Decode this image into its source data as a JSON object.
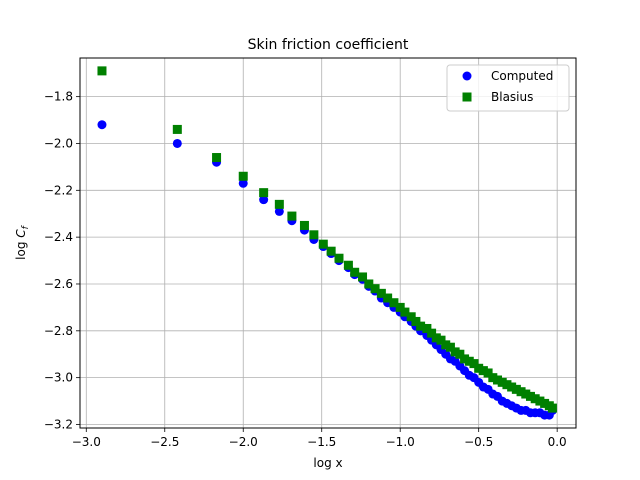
{
  "chart_data": {
    "type": "scatter",
    "title": "Skin friction coefficient",
    "xlabel": "log x",
    "ylabel_main": "log ",
    "ylabel_sym": "C",
    "ylabel_sub": "f",
    "xlim": [
      -3.04,
      0.12
    ],
    "ylim": [
      -3.215,
      -1.635
    ],
    "xticks": [
      -3.0,
      -2.5,
      -2.0,
      -1.5,
      -1.0,
      -0.5,
      0.0
    ],
    "xtick_labels": [
      "−3.0",
      "−2.5",
      "−2.0",
      "−1.5",
      "−1.0",
      "−0.5",
      "0.0"
    ],
    "yticks": [
      -3.2,
      -3.0,
      -2.8,
      -2.6,
      -2.4,
      -2.2,
      -2.0,
      -1.8
    ],
    "ytick_labels": [
      "−3.2",
      "−3.0",
      "−2.8",
      "−2.6",
      "−2.4",
      "−2.2",
      "−2.0",
      "−1.8"
    ],
    "grid": true,
    "legend_position": "top-right",
    "series": [
      {
        "name": "Computed",
        "marker": "circle",
        "color": "#0000ff",
        "x": [
          -2.9,
          -2.42,
          -2.17,
          -2.0,
          -1.87,
          -1.77,
          -1.69,
          -1.61,
          -1.55,
          -1.49,
          -1.44,
          -1.39,
          -1.33,
          -1.29,
          -1.24,
          -1.2,
          -1.16,
          -1.12,
          -1.08,
          -1.04,
          -1.0,
          -0.97,
          -0.93,
          -0.9,
          -0.87,
          -0.83,
          -0.8,
          -0.77,
          -0.74,
          -0.71,
          -0.68,
          -0.65,
          -0.62,
          -0.59,
          -0.56,
          -0.53,
          -0.5,
          -0.47,
          -0.44,
          -0.41,
          -0.38,
          -0.35,
          -0.32,
          -0.29,
          -0.26,
          -0.23,
          -0.2,
          -0.17,
          -0.14,
          -0.11,
          -0.08,
          -0.05,
          -0.03
        ],
        "y": [
          -1.92,
          -2.0,
          -2.08,
          -2.17,
          -2.24,
          -2.29,
          -2.33,
          -2.37,
          -2.41,
          -2.44,
          -2.47,
          -2.5,
          -2.53,
          -2.56,
          -2.58,
          -2.61,
          -2.63,
          -2.66,
          -2.68,
          -2.7,
          -2.72,
          -2.74,
          -2.76,
          -2.78,
          -2.8,
          -2.82,
          -2.84,
          -2.86,
          -2.88,
          -2.9,
          -2.92,
          -2.93,
          -2.95,
          -2.97,
          -2.99,
          -3.0,
          -3.02,
          -3.04,
          -3.05,
          -3.07,
          -3.08,
          -3.1,
          -3.11,
          -3.12,
          -3.13,
          -3.14,
          -3.14,
          -3.15,
          -3.15,
          -3.15,
          -3.16,
          -3.16,
          -3.14
        ]
      },
      {
        "name": "Blasius",
        "marker": "square",
        "color": "#008000",
        "x": [
          -2.9,
          -2.42,
          -2.17,
          -2.0,
          -1.87,
          -1.77,
          -1.69,
          -1.61,
          -1.55,
          -1.49,
          -1.44,
          -1.39,
          -1.33,
          -1.29,
          -1.24,
          -1.2,
          -1.16,
          -1.12,
          -1.08,
          -1.04,
          -1.0,
          -0.97,
          -0.93,
          -0.9,
          -0.87,
          -0.83,
          -0.8,
          -0.77,
          -0.74,
          -0.71,
          -0.68,
          -0.65,
          -0.62,
          -0.59,
          -0.56,
          -0.53,
          -0.5,
          -0.47,
          -0.44,
          -0.41,
          -0.38,
          -0.35,
          -0.32,
          -0.29,
          -0.26,
          -0.23,
          -0.2,
          -0.17,
          -0.14,
          -0.11,
          -0.08,
          -0.05,
          -0.03
        ],
        "y": [
          -1.69,
          -1.94,
          -2.06,
          -2.14,
          -2.21,
          -2.26,
          -2.31,
          -2.35,
          -2.39,
          -2.43,
          -2.46,
          -2.49,
          -2.52,
          -2.55,
          -2.57,
          -2.6,
          -2.62,
          -2.64,
          -2.66,
          -2.68,
          -2.7,
          -2.72,
          -2.74,
          -2.76,
          -2.78,
          -2.79,
          -2.81,
          -2.83,
          -2.84,
          -2.86,
          -2.87,
          -2.89,
          -2.9,
          -2.92,
          -2.93,
          -2.94,
          -2.96,
          -2.97,
          -2.98,
          -3.0,
          -3.01,
          -3.02,
          -3.03,
          -3.04,
          -3.05,
          -3.06,
          -3.07,
          -3.08,
          -3.09,
          -3.1,
          -3.11,
          -3.12,
          -3.13
        ]
      }
    ]
  }
}
